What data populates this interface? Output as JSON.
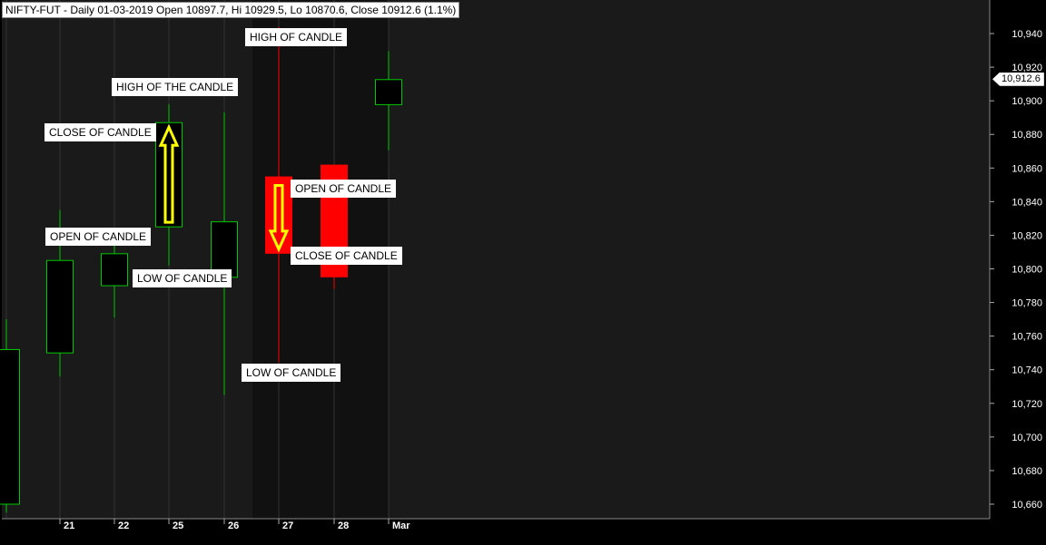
{
  "header": {
    "title": "NIFTY-FUT - Daily 01-03-2019 Open 10897.7, Hi 10929.5, Lo 10870.6, Close 10912.6 (1.1%)"
  },
  "chart_data": {
    "type": "candlestick",
    "symbol": "NIFTY-FUT",
    "interval": "Daily",
    "ylim": [
      10650,
      10955
    ],
    "y_ticks": [
      10660,
      10680,
      10700,
      10720,
      10740,
      10760,
      10780,
      10800,
      10820,
      10840,
      10860,
      10880,
      10900,
      10920,
      10940
    ],
    "y_tick_labels": [
      "10,660",
      "10,680",
      "10,700",
      "10,720",
      "10,740",
      "10,760",
      "10,780",
      "10,800",
      "10,820",
      "10,840",
      "10,860",
      "10,880",
      "10,900",
      "10,920",
      "10,940"
    ],
    "last_price_label": "10,912.6",
    "last_price": 10912.6,
    "x_labels": [
      "21",
      "22",
      "25",
      "26",
      "27",
      "28",
      "Mar"
    ],
    "candles": [
      {
        "x_label": "",
        "open": 10660,
        "high": 10770,
        "low": 10655,
        "close": 10752,
        "color": "green"
      },
      {
        "x_label": "21",
        "open": 10750,
        "high": 10835,
        "low": 10736,
        "close": 10805,
        "color": "green"
      },
      {
        "x_label": "22",
        "open": 10790,
        "high": 10820,
        "low": 10771,
        "close": 10809,
        "color": "green"
      },
      {
        "x_label": "25",
        "open": 10825,
        "high": 10898,
        "low": 10802,
        "close": 10887,
        "color": "green"
      },
      {
        "x_label": "26",
        "open": 10795,
        "high": 10893,
        "low": 10725,
        "close": 10828,
        "color": "green"
      },
      {
        "x_label": "27",
        "open": 10855,
        "high": 10944,
        "low": 10745,
        "close": 10809,
        "color": "red"
      },
      {
        "x_label": "28",
        "open": 10862,
        "high": 10862,
        "low": 10788,
        "close": 10795,
        "color": "red"
      },
      {
        "x_label": "Mar",
        "open": 10897.7,
        "high": 10929.5,
        "low": 10870.6,
        "close": 10912.6,
        "color": "green"
      }
    ],
    "annotations": [
      {
        "text": "HIGH OF THE CANDLE"
      },
      {
        "text": "CLOSE OF CANDLE"
      },
      {
        "text": "OPEN OF CANDLE"
      },
      {
        "text": "LOW OF CANDLE"
      },
      {
        "text": "HIGH OF CANDLE"
      },
      {
        "text": "OPEN OF CANDLE"
      },
      {
        "text": "CLOSE OF CANDLE"
      },
      {
        "text": "LOW OF CANDLE"
      }
    ],
    "arrows": [
      {
        "direction": "up",
        "candle": "25"
      },
      {
        "direction": "down",
        "candle": "27"
      }
    ],
    "colors": {
      "background": "#000000",
      "plot_background": "#1a1a1a",
      "bull": "#00c800",
      "bear": "#ff0000",
      "arrow": "#ffff00",
      "grid": "#333333",
      "cursor": "#c00000"
    }
  }
}
